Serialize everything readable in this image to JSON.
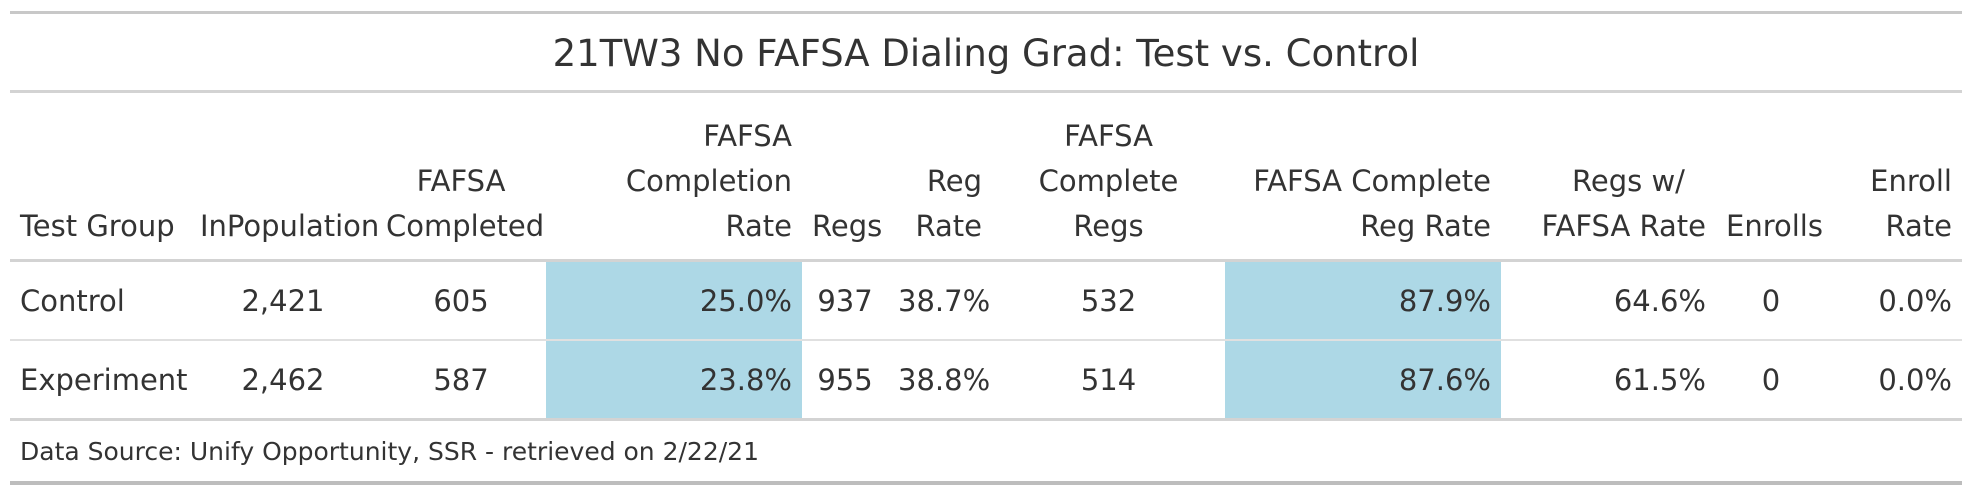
{
  "table": {
    "title": "21TW3 No FAFSA Dialing Grad: Test vs. Control",
    "highlight_color": "#add8e6",
    "headers": [
      [
        "Test Group"
      ],
      [
        "InPopulation"
      ],
      [
        "FAFSA",
        "Completed"
      ],
      [
        "FAFSA",
        "Completion",
        "Rate"
      ],
      [
        "Regs"
      ],
      [
        "Reg",
        "Rate"
      ],
      [
        "FAFSA",
        "Complete",
        "Regs"
      ],
      [
        "FAFSA Complete",
        "Reg Rate"
      ],
      [
        "Regs w/",
        "FAFSA Rate"
      ],
      [
        "Enrolls"
      ],
      [
        "Enroll",
        "Rate"
      ]
    ],
    "rows": [
      [
        "Control",
        "2,421",
        "605",
        "25.0%",
        "937",
        "38.7%",
        "532",
        "87.9%",
        "64.6%",
        "0",
        "0.0%"
      ],
      [
        "Experiment",
        "2,462",
        "587",
        "23.8%",
        "955",
        "38.8%",
        "514",
        "87.6%",
        "61.5%",
        "0",
        "0.0%"
      ]
    ],
    "source_note": "Data Source: Unify Opportunity, SSR - retrieved on 2/22/21"
  }
}
